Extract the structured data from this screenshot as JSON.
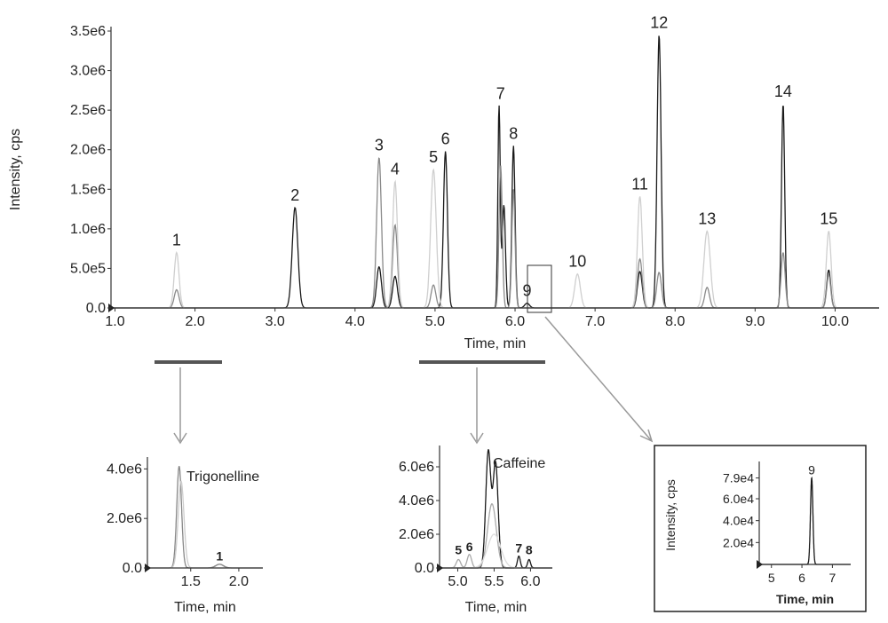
{
  "chart_data": [
    {
      "type": "line",
      "xlabel": "Time, min",
      "ylabel": "Intensity, cps",
      "xlim": [
        0.95,
        10.55
      ],
      "ylim": [
        0,
        3500000
      ],
      "xticks": [
        "1.0",
        "2.0",
        "3.0",
        "4.0",
        "5.0",
        "6.0",
        "7.0",
        "8.0",
        "9.0",
        "10.0"
      ],
      "yticks": [
        "0.0",
        "5.0e5",
        "1.0e6",
        "1.5e6",
        "2.0e6",
        "2.5e6",
        "3.0e6",
        "3.5e6"
      ],
      "grid": false,
      "peak_labels": [
        {
          "label": "1",
          "x": 1.77,
          "y": 700000
        },
        {
          "label": "2",
          "x": 3.25,
          "y": 1270000
        },
        {
          "label": "3",
          "x": 4.3,
          "y": 1900000
        },
        {
          "label": "4",
          "x": 4.5,
          "y": 1600000
        },
        {
          "label": "5",
          "x": 4.98,
          "y": 1750000
        },
        {
          "label": "6",
          "x": 5.13,
          "y": 1980000
        },
        {
          "label": "7",
          "x": 5.82,
          "y": 2550000
        },
        {
          "label": "8",
          "x": 5.98,
          "y": 2050000
        },
        {
          "label": "9",
          "x": 6.15,
          "y": 60000
        },
        {
          "label": "10",
          "x": 6.78,
          "y": 430000
        },
        {
          "label": "11",
          "x": 7.56,
          "y": 1410000
        },
        {
          "label": "12",
          "x": 7.8,
          "y": 3450000
        },
        {
          "label": "13",
          "x": 8.4,
          "y": 970000
        },
        {
          "label": "14",
          "x": 9.35,
          "y": 2580000
        },
        {
          "label": "15",
          "x": 9.92,
          "y": 970000
        }
      ],
      "series": [
        {
          "color": "#1a1a1a",
          "peaks": [
            [
              3.25,
              1270000,
              0.035
            ],
            [
              4.3,
              520000,
              0.03
            ],
            [
              4.5,
              400000,
              0.03
            ],
            [
              5.13,
              1980000,
              0.025
            ],
            [
              5.8,
              2550000,
              0.015
            ],
            [
              5.86,
              1300000,
              0.02
            ],
            [
              5.98,
              2050000,
              0.02
            ],
            [
              6.15,
              60000,
              0.03
            ],
            [
              7.56,
              460000,
              0.03
            ],
            [
              7.8,
              3450000,
              0.025
            ],
            [
              9.35,
              2580000,
              0.02
            ],
            [
              9.92,
              480000,
              0.025
            ]
          ]
        },
        {
          "color": "#8a8a8a",
          "peaks": [
            [
              1.77,
              230000,
              0.03
            ],
            [
              4.3,
              1900000,
              0.03
            ],
            [
              4.5,
              1050000,
              0.03
            ],
            [
              4.98,
              290000,
              0.03
            ],
            [
              5.82,
              1800000,
              0.02
            ],
            [
              5.98,
              1500000,
              0.02
            ],
            [
              7.56,
              620000,
              0.03
            ],
            [
              7.8,
              450000,
              0.03
            ],
            [
              8.4,
              260000,
              0.03
            ],
            [
              9.35,
              700000,
              0.025
            ],
            [
              9.92,
              420000,
              0.025
            ]
          ]
        },
        {
          "color": "#cfcfcf",
          "peaks": [
            [
              1.77,
              700000,
              0.03
            ],
            [
              4.5,
              1600000,
              0.03
            ],
            [
              4.98,
              1750000,
              0.035
            ],
            [
              6.78,
              430000,
              0.035
            ],
            [
              7.56,
              1410000,
              0.03
            ],
            [
              8.4,
              970000,
              0.04
            ],
            [
              9.92,
              970000,
              0.03
            ]
          ]
        }
      ]
    },
    {
      "type": "line",
      "xlabel": "Time, min",
      "xlim": [
        1.05,
        2.25
      ],
      "ylim": [
        0,
        4300000
      ],
      "xticks": [
        "1.5",
        "2.0"
      ],
      "yticks": [
        "0.0",
        "2.0e6",
        "4.0e6"
      ],
      "annotation": "Trigonelline",
      "peak_labels": [
        {
          "label": "1",
          "x": 1.8,
          "y": 160000
        }
      ],
      "series": [
        {
          "color": "#888888",
          "peaks": [
            [
              1.38,
              4100000,
              0.025
            ],
            [
              1.8,
              150000,
              0.04
            ]
          ]
        },
        {
          "color": "#cccccc",
          "peaks": [
            [
              1.4,
              3500000,
              0.03
            ]
          ]
        }
      ]
    },
    {
      "type": "line",
      "xlabel": "Time, min",
      "xlim": [
        4.75,
        6.3
      ],
      "ylim": [
        0,
        7000000
      ],
      "xticks": [
        "5.0",
        "5.5",
        "6.0"
      ],
      "yticks": [
        "0.0",
        "2.0e6",
        "4.0e6",
        "6.0e6"
      ],
      "annotation": "Caffeine",
      "peak_labels": [
        {
          "label": "5",
          "x": 5.01,
          "y": 600000
        },
        {
          "label": "6",
          "x": 5.16,
          "y": 800000
        },
        {
          "label": "7",
          "x": 5.84,
          "y": 700000
        },
        {
          "label": "8",
          "x": 5.98,
          "y": 600000
        }
      ],
      "series": [
        {
          "color": "#1a1a1a",
          "peaks": [
            [
              5.42,
              6900000,
              0.035
            ],
            [
              5.52,
              6200000,
              0.035
            ],
            [
              5.84,
              700000,
              0.02
            ],
            [
              5.98,
              500000,
              0.02
            ]
          ]
        },
        {
          "color": "#aaaaaa",
          "peaks": [
            [
              5.01,
              500000,
              0.03
            ],
            [
              5.16,
              800000,
              0.03
            ],
            [
              5.47,
              3800000,
              0.06
            ]
          ]
        },
        {
          "color": "#dddddd",
          "peaks": [
            [
              5.5,
              2000000,
              0.09
            ]
          ]
        }
      ]
    },
    {
      "type": "line",
      "xlabel": "Time, min",
      "ylabel": "Intensity, cps",
      "xlim": [
        4.6,
        7.6
      ],
      "ylim": [
        0,
        90000
      ],
      "xticks": [
        "5",
        "6",
        "7"
      ],
      "yticks": [
        "2.0e4",
        "4.0e4",
        "6.0e4",
        "7.9e4"
      ],
      "peak_labels": [
        {
          "label": "9",
          "x": 6.32,
          "y": 79000
        }
      ],
      "series": [
        {
          "color": "#1a1a1a",
          "peaks": [
            [
              6.32,
              79000,
              0.04
            ]
          ]
        }
      ]
    }
  ],
  "arrows": {
    "inset_9_label": "9"
  }
}
